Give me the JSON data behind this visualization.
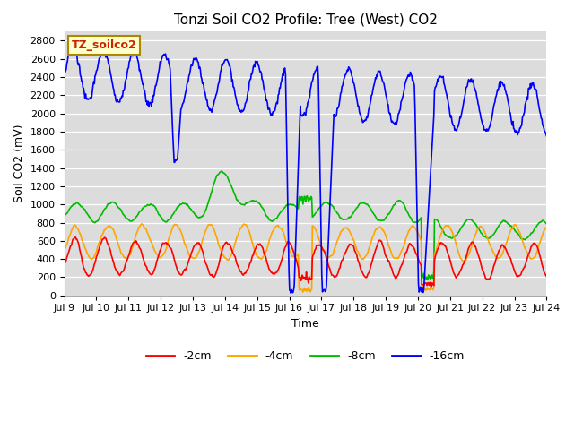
{
  "title": "Tonzi Soil CO2 Profile: Tree (West) CO2",
  "xlabel": "Time",
  "ylabel": "Soil CO2 (mV)",
  "label_box": "TZ_soilco2",
  "ylim": [
    0,
    2900
  ],
  "yticks": [
    0,
    200,
    400,
    600,
    800,
    1000,
    1200,
    1400,
    1600,
    1800,
    2000,
    2200,
    2400,
    2600,
    2800
  ],
  "xtick_labels": [
    "Jul 9",
    "Jul 10",
    "Jul 11",
    "Jul 12",
    "Jul 13",
    "Jul 14",
    "Jul 15",
    "Jul 16",
    "Jul 17",
    "Jul 18",
    "Jul 19",
    "Jul 20",
    "Jul 21",
    "Jul 22",
    "Jul 23",
    "Jul 24"
  ],
  "line_colors": {
    "m2cm": "#ff0000",
    "m4cm": "#ffa500",
    "m8cm": "#00bb00",
    "m16cm": "#0000ff"
  },
  "legend_labels": [
    "-2cm",
    "-4cm",
    "-8cm",
    "-16cm"
  ],
  "plot_bg": "#dcdcdc",
  "title_fontsize": 11,
  "axis_label_fontsize": 9,
  "tick_fontsize": 8
}
